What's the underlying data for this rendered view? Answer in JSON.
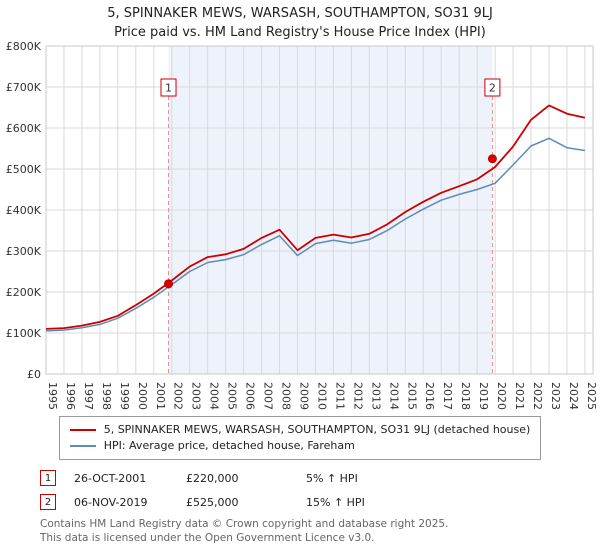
{
  "title": "5, SPINNAKER MEWS, WARSASH, SOUTHAMPTON, SO31 9LJ",
  "subtitle": "Price paid vs. HM Land Registry's House Price Index (HPI)",
  "chart_data": {
    "type": "line",
    "x": [
      1995,
      1996,
      1997,
      1998,
      1999,
      2000,
      2001,
      2002,
      2003,
      2004,
      2005,
      2006,
      2007,
      2008,
      2009,
      2010,
      2011,
      2012,
      2013,
      2014,
      2015,
      2016,
      2017,
      2018,
      2019,
      2020,
      2021,
      2022,
      2023,
      2024,
      2025
    ],
    "series": [
      {
        "name": "5, SPINNAKER MEWS, WARSASH, SOUTHAMPTON, SO31 9LJ (detached house)",
        "color": "#cc0000",
        "width": 1.8,
        "values": [
          110,
          112,
          118,
          127,
          142,
          168,
          196,
          228,
          262,
          285,
          292,
          305,
          332,
          352,
          302,
          332,
          340,
          333,
          342,
          365,
          395,
          420,
          442,
          458,
          475,
          505,
          555,
          620,
          655,
          635,
          625
        ]
      },
      {
        "name": "HPI: Average price, detached house, Fareham",
        "color": "#5c8cb8",
        "width": 1.5,
        "values": [
          105,
          107,
          113,
          121,
          136,
          160,
          187,
          218,
          250,
          272,
          279,
          291,
          316,
          337,
          289,
          318,
          326,
          319,
          328,
          350,
          378,
          402,
          424,
          438,
          450,
          465,
          510,
          556,
          575,
          552,
          545
        ]
      }
    ],
    "units": "GBP thousands",
    "xlim": [
      1995,
      2025.45
    ],
    "ylim": [
      0,
      800
    ],
    "x_ticks": [
      1995,
      1996,
      1997,
      1998,
      1999,
      2000,
      2001,
      2002,
      2003,
      2004,
      2005,
      2006,
      2007,
      2008,
      2009,
      2010,
      2011,
      2012,
      2013,
      2014,
      2015,
      2016,
      2017,
      2018,
      2019,
      2020,
      2021,
      2022,
      2023,
      2024,
      2025
    ],
    "y_ticks": [
      {
        "value": 0,
        "label": "£0"
      },
      {
        "value": 100,
        "label": "£100K"
      },
      {
        "value": 200,
        "label": "£200K"
      },
      {
        "value": 300,
        "label": "£300K"
      },
      {
        "value": 400,
        "label": "£400K"
      },
      {
        "value": 500,
        "label": "£500K"
      },
      {
        "value": 600,
        "label": "£600K"
      },
      {
        "value": 700,
        "label": "£700K"
      },
      {
        "value": 800,
        "label": "£800K"
      }
    ],
    "band": {
      "from": 2001.82,
      "to": 2019.85,
      "color": "#edf2fb"
    },
    "markers": [
      {
        "label": "1",
        "x": 2001.82,
        "y": 220
      },
      {
        "label": "2",
        "x": 2019.85,
        "y": 525
      }
    ],
    "colors": {
      "grid": "#d9d9d9",
      "border": "#c8c8c8",
      "marker_dash": "#e09090",
      "property": "#cc0000",
      "hpi": "#5c8cb8"
    },
    "grid": true,
    "legend_position": "bottom"
  },
  "annotations": [
    {
      "num": "1",
      "date": "26-OCT-2001",
      "price": "£220,000",
      "hpi": "5% ↑ HPI"
    },
    {
      "num": "2",
      "date": "06-NOV-2019",
      "price": "£525,000",
      "hpi": "15% ↑ HPI"
    }
  ],
  "footer": {
    "line1": "Contains HM Land Registry data © Crown copyright and database right 2025.",
    "line2": "This data is licensed under the Open Government Licence v3.0."
  }
}
